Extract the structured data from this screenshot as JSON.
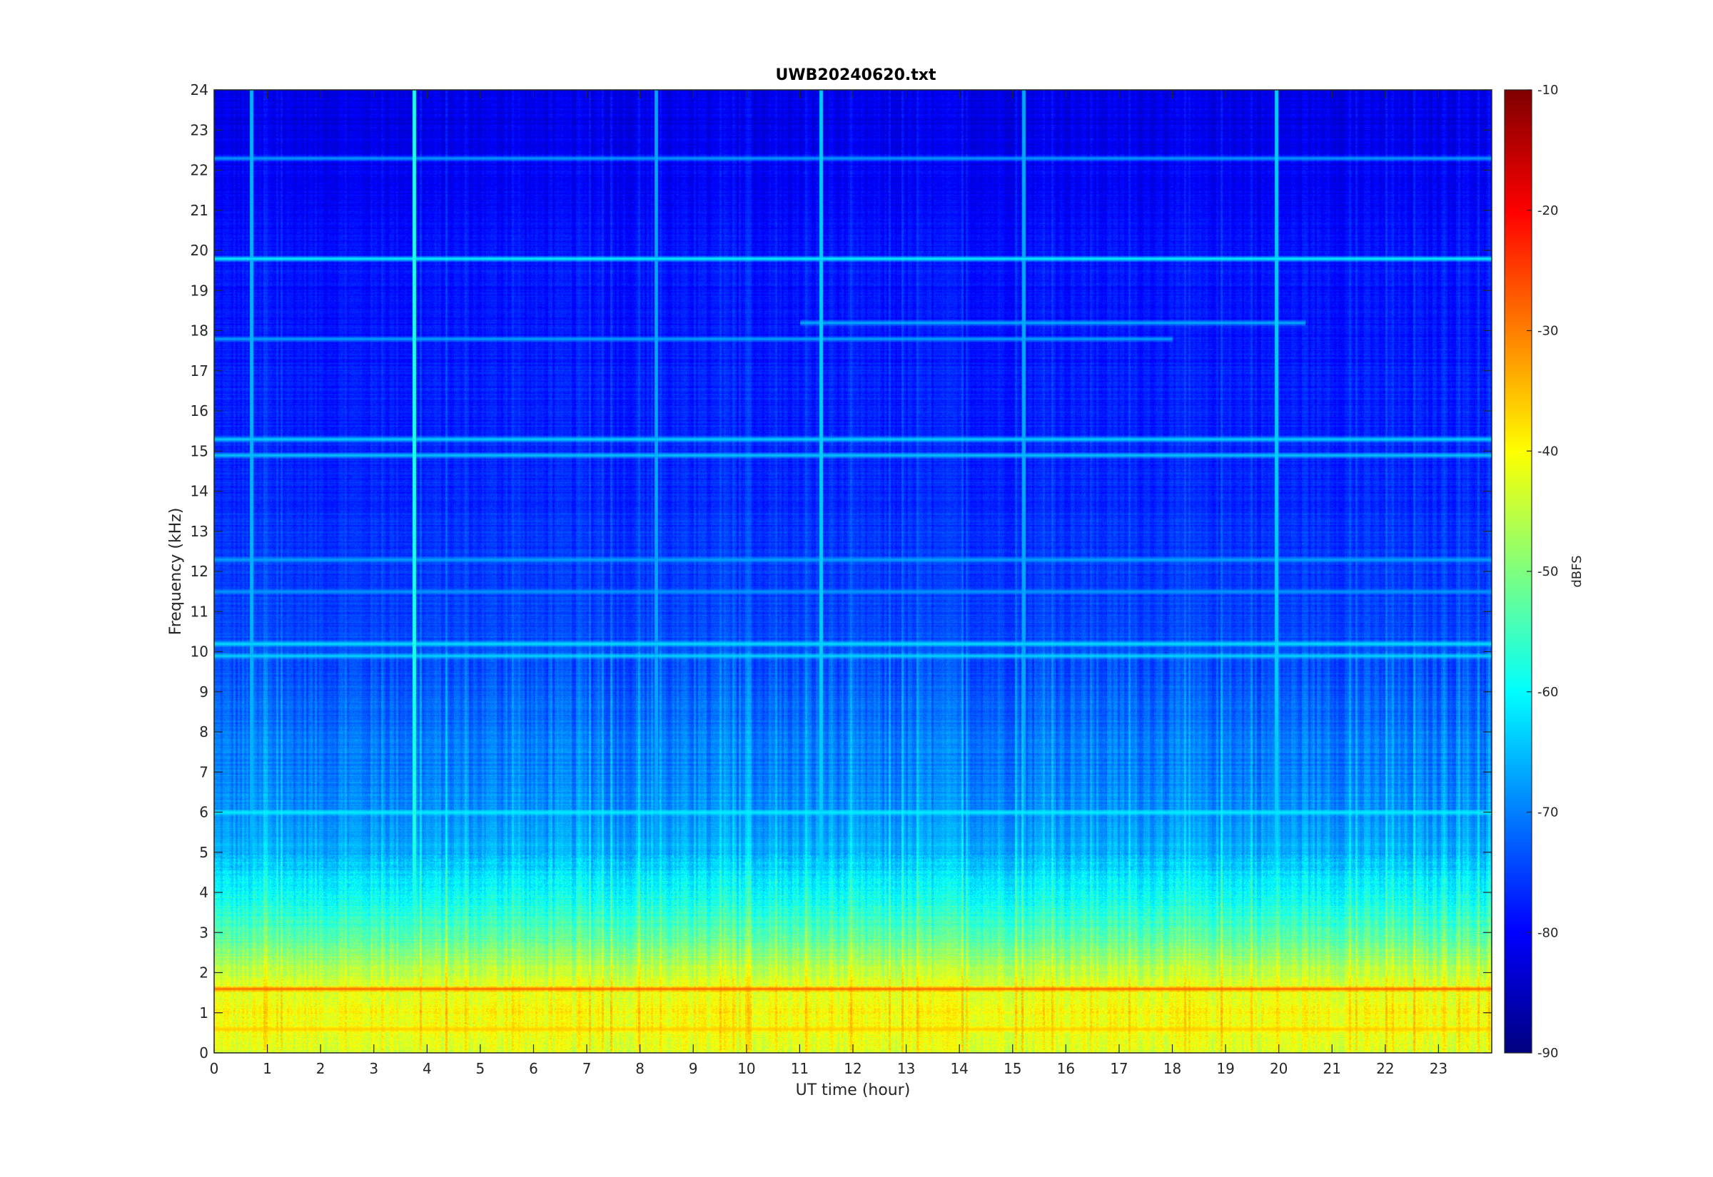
{
  "chart_data": {
    "type": "heatmap",
    "title": "UWB20240620.txt",
    "xlabel": "UT time (hour)",
    "ylabel": "Frequency (kHz)",
    "xlim": [
      0,
      24
    ],
    "ylim": [
      0,
      24
    ],
    "x_ticks": [
      "0",
      "1",
      "2",
      "3",
      "4",
      "5",
      "6",
      "7",
      "8",
      "9",
      "10",
      "11",
      "12",
      "13",
      "14",
      "15",
      "16",
      "17",
      "18",
      "19",
      "20",
      "21",
      "22",
      "23"
    ],
    "y_ticks": [
      "0",
      "1",
      "2",
      "3",
      "4",
      "5",
      "6",
      "7",
      "8",
      "9",
      "10",
      "11",
      "12",
      "13",
      "14",
      "15",
      "16",
      "17",
      "18",
      "19",
      "20",
      "21",
      "22",
      "23",
      "24"
    ],
    "colorbar": {
      "label": "dBFS",
      "limits": [
        -90,
        -10
      ],
      "ticks": [
        "-10",
        "-20",
        "-30",
        "-40",
        "-50",
        "-60",
        "-70",
        "-80",
        "-90"
      ],
      "colormap": "jet"
    },
    "background_level_dbfs": [
      {
        "freq_khz": 0,
        "dbfs": -43
      },
      {
        "freq_khz": 1,
        "dbfs": -40
      },
      {
        "freq_khz": 2,
        "dbfs": -45
      },
      {
        "freq_khz": 3,
        "dbfs": -54
      },
      {
        "freq_khz": 4,
        "dbfs": -60
      },
      {
        "freq_khz": 5,
        "dbfs": -66
      },
      {
        "freq_khz": 6,
        "dbfs": -69
      },
      {
        "freq_khz": 7,
        "dbfs": -70
      },
      {
        "freq_khz": 8,
        "dbfs": -71
      },
      {
        "freq_khz": 9,
        "dbfs": -73
      },
      {
        "freq_khz": 11,
        "dbfs": -75
      },
      {
        "freq_khz": 14,
        "dbfs": -77
      },
      {
        "freq_khz": 17,
        "dbfs": -78
      },
      {
        "freq_khz": 20,
        "dbfs": -79
      },
      {
        "freq_khz": 22,
        "dbfs": -81
      },
      {
        "freq_khz": 24,
        "dbfs": -82
      }
    ],
    "horizontal_lines": [
      {
        "freq_khz": 19.8,
        "dbfs": -60,
        "from_hour": 0,
        "to_hour": 24
      },
      {
        "freq_khz": 18.2,
        "dbfs": -66,
        "from_hour": 11,
        "to_hour": 20.5
      },
      {
        "freq_khz": 22.3,
        "dbfs": -67,
        "from_hour": 0,
        "to_hour": 24
      },
      {
        "freq_khz": 15.3,
        "dbfs": -63,
        "from_hour": 0,
        "to_hour": 24
      },
      {
        "freq_khz": 14.9,
        "dbfs": -64,
        "from_hour": 0,
        "to_hour": 24
      },
      {
        "freq_khz": 10.2,
        "dbfs": -62,
        "from_hour": 0,
        "to_hour": 24
      },
      {
        "freq_khz": 9.9,
        "dbfs": -63,
        "from_hour": 0,
        "to_hour": 24
      },
      {
        "freq_khz": 6.0,
        "dbfs": -61,
        "from_hour": 0,
        "to_hour": 24
      },
      {
        "freq_khz": 1.6,
        "dbfs": -28,
        "from_hour": 0,
        "to_hour": 24
      },
      {
        "freq_khz": 0.6,
        "dbfs": -36,
        "from_hour": 0,
        "to_hour": 24
      },
      {
        "freq_khz": 12.3,
        "dbfs": -67,
        "from_hour": 0,
        "to_hour": 24
      },
      {
        "freq_khz": 11.5,
        "dbfs": -68,
        "from_hour": 0,
        "to_hour": 24
      },
      {
        "freq_khz": 17.8,
        "dbfs": -67,
        "from_hour": 0,
        "to_hour": 18
      }
    ],
    "vertical_streaks": [
      {
        "hour": 3.75,
        "dbfs": -58
      },
      {
        "hour": 11.4,
        "dbfs": -64
      },
      {
        "hour": 19.95,
        "dbfs": -64
      },
      {
        "hour": 0.7,
        "dbfs": -66
      },
      {
        "hour": 8.3,
        "dbfs": -67
      },
      {
        "hour": 15.2,
        "dbfs": -67
      }
    ]
  }
}
